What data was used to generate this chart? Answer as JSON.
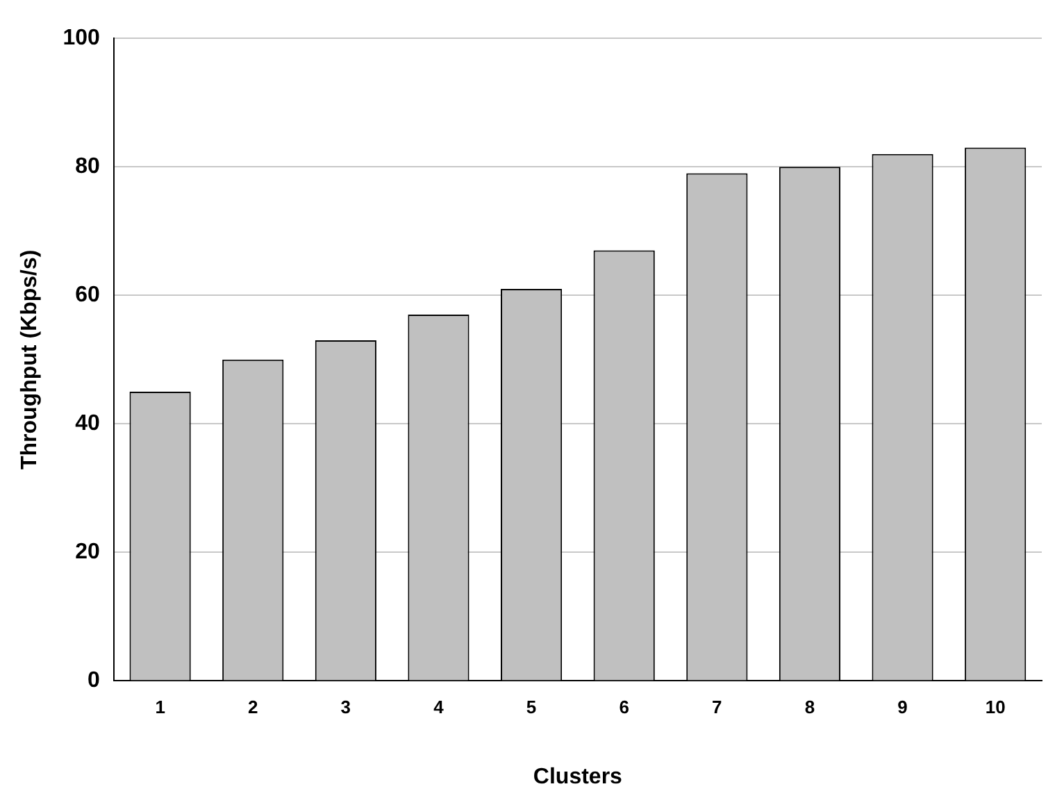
{
  "chart_data": {
    "type": "bar",
    "xlabel": "Clusters",
    "ylabel": "Throughput (Kbps/s)",
    "categories": [
      "1",
      "2",
      "3",
      "4",
      "5",
      "6",
      "7",
      "8",
      "9",
      "10"
    ],
    "values": [
      45,
      50,
      53,
      57,
      61,
      67,
      79,
      80,
      82,
      83
    ],
    "color": "#c0c0c0",
    "ylim": [
      0,
      100
    ],
    "yticks": [
      0,
      20,
      40,
      60,
      80,
      100
    ],
    "grid": "y",
    "legend": false
  }
}
